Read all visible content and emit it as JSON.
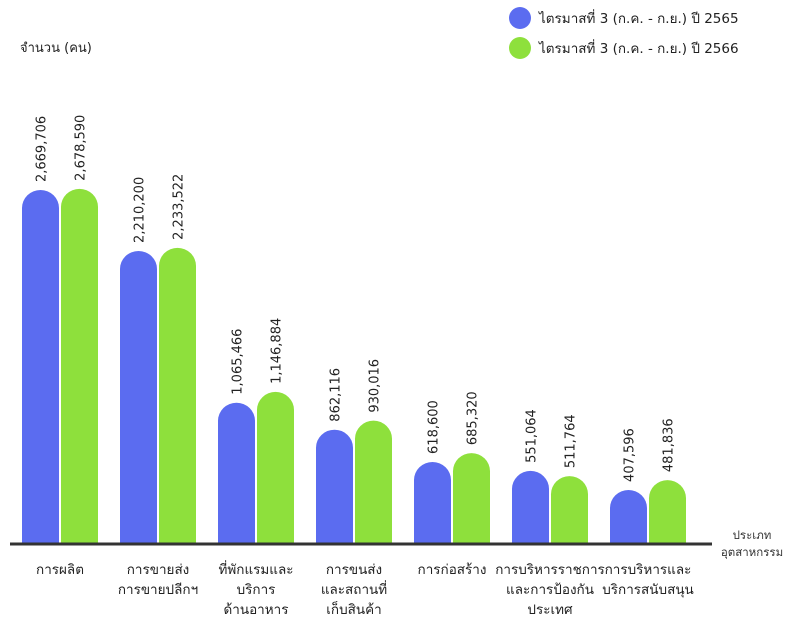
{
  "chart_data": {
    "type": "bar",
    "ylabel": "จำนวน (คน)",
    "xlabel_lines": [
      "ประเภท",
      "อุตสาหกรรม"
    ],
    "legend_position": "top-right",
    "grid": false,
    "ylim": [
      0,
      2700000
    ],
    "categories": [
      [
        "การผลิต"
      ],
      [
        "การขายส่ง",
        "การขายปลีกฯ"
      ],
      [
        "ที่พักแรมและ",
        "บริการ",
        "ด้านอาหาร"
      ],
      [
        "การขนส่ง",
        "และสถานที่",
        "เก็บสินค้า"
      ],
      [
        "การก่อสร้าง"
      ],
      [
        "การบริหารราชการ",
        "และการป้องกัน",
        "ประเทศ"
      ],
      [
        "การบริหารและ",
        "บริการสนับสนุน"
      ]
    ],
    "series": [
      {
        "name": "ไตรมาสที่ 3 (ก.ค. - ก.ย.) ปี 2565",
        "color": "#5b6cf0",
        "values": [
          2669706,
          2210200,
          1065466,
          862116,
          618600,
          551064,
          407596
        ],
        "labels": [
          "2,669,706",
          "2,210,200",
          "1,065,466",
          "862,116",
          "618,600",
          "551,064",
          "407,596"
        ]
      },
      {
        "name": "ไตรมาสที่ 3 (ก.ค. - ก.ย.) ปี 2566",
        "color": "#8ee03c",
        "values": [
          2678590,
          2233522,
          1146884,
          930016,
          685320,
          511764,
          481836
        ],
        "labels": [
          "2,678,590",
          "2,233,522",
          "1,146,884",
          "930,016",
          "685,320",
          "511,764",
          "481,836"
        ]
      }
    ]
  }
}
